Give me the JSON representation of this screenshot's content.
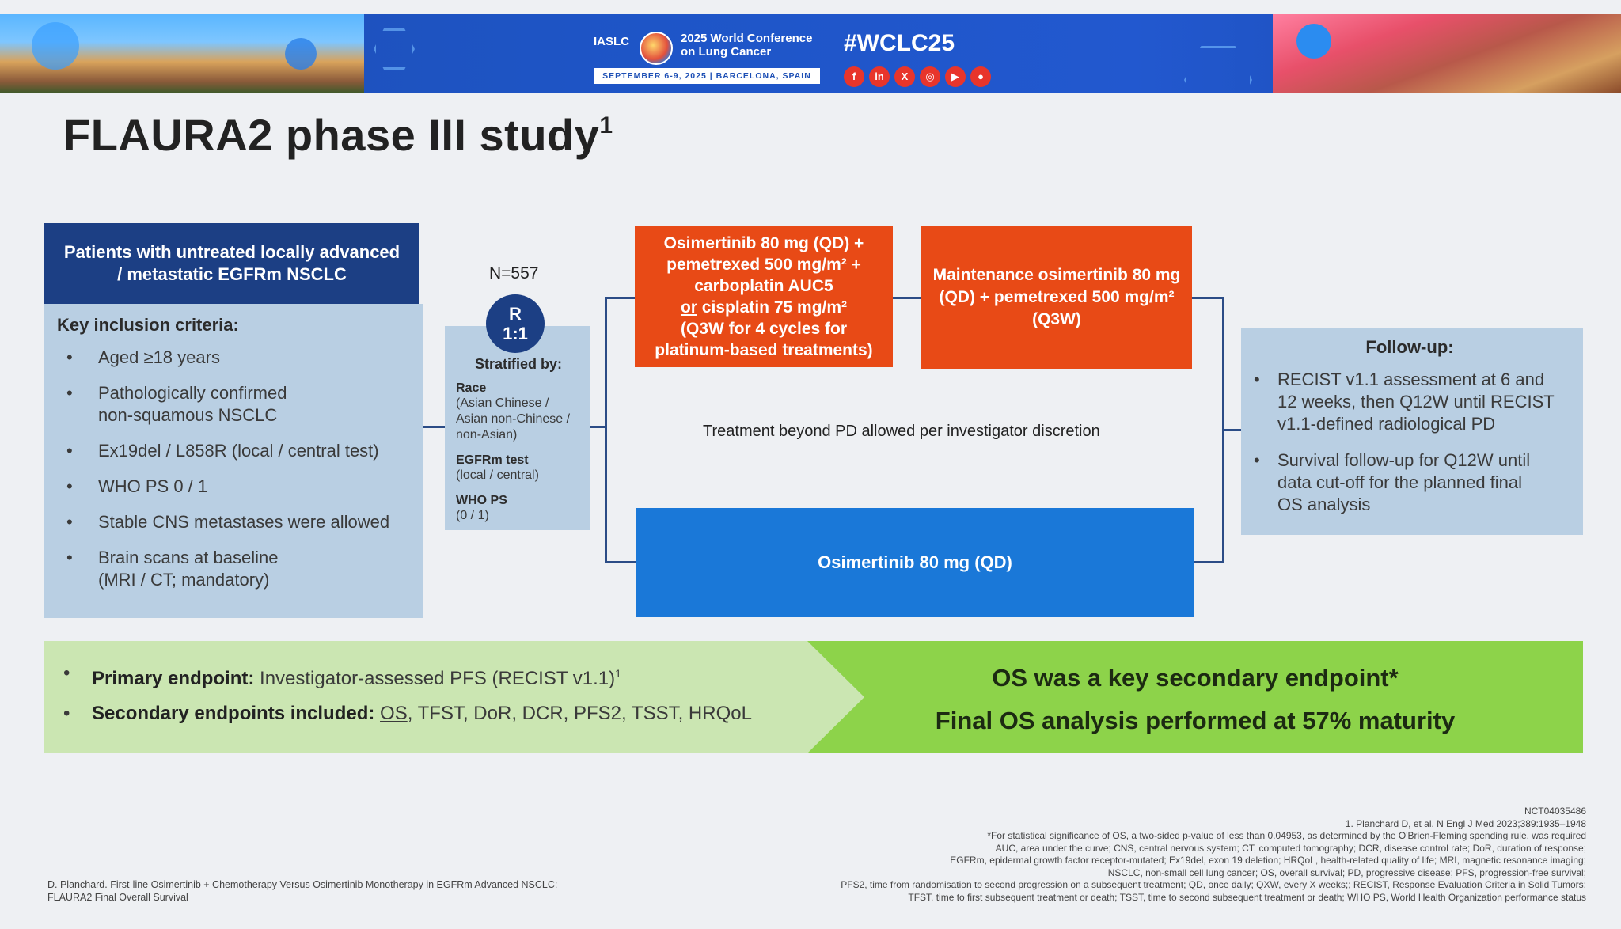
{
  "banner": {
    "org": "IASLC",
    "conference_title": "2025 World Conference on Lung Cancer",
    "dates": "SEPTEMBER 6-9, 2025 | BARCELONA, SPAIN",
    "hashtag": "#WCLC25",
    "socials": [
      {
        "icon": "facebook-icon",
        "glyph": "f"
      },
      {
        "icon": "linkedin-icon",
        "glyph": "in"
      },
      {
        "icon": "x-icon",
        "glyph": "X"
      },
      {
        "icon": "instagram-icon",
        "glyph": "◎"
      },
      {
        "icon": "youtube-icon",
        "glyph": "▶"
      },
      {
        "icon": "wechat-icon",
        "glyph": "●"
      }
    ]
  },
  "title": "FLAURA2 phase III study",
  "title_sup": "1",
  "population": {
    "header": "Patients with untreated locally advanced / metastatic EGFRm NSCLC",
    "criteria_heading": "Key inclusion criteria:",
    "criteria": [
      "Aged ≥18 years",
      "Pathologically confirmed\nnon-squamous NSCLC",
      "Ex19del / L858R (local / central test)",
      "WHO PS 0 / 1",
      "Stable CNS metastases were allowed",
      "Brain scans at baseline\n(MRI / CT; mandatory)"
    ]
  },
  "randomisation": {
    "n": "N=557",
    "r_label": "R",
    "ratio": "1:1",
    "stratified_heading": "Stratified by:",
    "factors": [
      {
        "name": "Race",
        "detail": "(Asian Chinese /\nAsian non-Chinese /\nnon-Asian)"
      },
      {
        "name": "EGFRm test",
        "detail": "(local / central)"
      },
      {
        "name": "WHO PS",
        "detail": "(0 / 1)"
      }
    ]
  },
  "arms": {
    "combo_induction": {
      "line1": "Osimertinib 80 mg (QD) +",
      "line2": "pemetrexed 500 mg/m² +",
      "line3": "carboplatin AUC5",
      "line4_or": "or",
      "line4_rest": " cisplatin 75 mg/m²",
      "line5": "(Q3W for 4 cycles for",
      "line6": "platinum-based treatments)"
    },
    "combo_maintenance": "Maintenance osimertinib 80 mg (QD) + pemetrexed 500 mg/m² (Q3W)",
    "beyond_pd": "Treatment beyond PD allowed per investigator discretion",
    "monotherapy": "Osimertinib 80 mg (QD)"
  },
  "followup": {
    "heading": "Follow-up:",
    "items": [
      "RECIST v1.1 assessment at 6 and\n12 weeks, then Q12W until RECIST\nv1.1-defined radiological PD",
      "Survival follow-up for Q12W until\ndata cut-off for the planned final\nOS analysis"
    ]
  },
  "endpoints": {
    "primary_label": "Primary endpoint:",
    "primary_value": " Investigator-assessed PFS (RECIST v1.1)",
    "primary_sup": "1",
    "secondary_label": "Secondary endpoints included:",
    "secondary_os": "OS",
    "secondary_rest": ", TFST, DoR, DCR, PFS2, TSST, HRQoL",
    "key_line1": "OS was a key secondary endpoint*",
    "key_line2": "Final OS analysis performed at 57% maturity"
  },
  "footer": {
    "left": "D. Planchard. First-line Osimertinib + Chemotherapy Versus Osimertinib Monotherapy in EGFRm Advanced NSCLC:\nFLAURA2 Final Overall Survival",
    "right_lines": [
      "NCT04035486",
      "1. Planchard D, et al. N Engl J Med 2023;389:1935–1948",
      "*For statistical significance of OS, a two-sided p-value of less than 0.04953, as determined by the O'Brien-Fleming spending rule, was required",
      "AUC, area under the curve; CNS, central nervous system; CT, computed tomography; DCR, disease control rate; DoR, duration of response;",
      "EGFRm, epidermal growth factor receptor-mutated; Ex19del, exon 19 deletion; HRQoL, health-related quality of life; MRI, magnetic resonance imaging;",
      "NSCLC, non-small cell lung cancer; OS, overall survival; PD, progressive disease; PFS, progression-free survival;",
      "PFS2, time from randomisation to second progression on a subsequent treatment; QD, once daily; QXW, every X weeks;; RECIST, Response Evaluation Criteria in Solid Tumors;",
      "TFST, time to first subsequent treatment or death; TSST, time to second subsequent treatment or death; WHO PS, World Health Organization performance status"
    ]
  },
  "colors": {
    "navy": "#1c3f84",
    "light_blue_panel": "#b9cfe3",
    "orange_arm": "#e84a16",
    "blue_arm": "#1a78d8",
    "light_green": "#cbe6b2",
    "bright_green": "#8dd34a"
  }
}
